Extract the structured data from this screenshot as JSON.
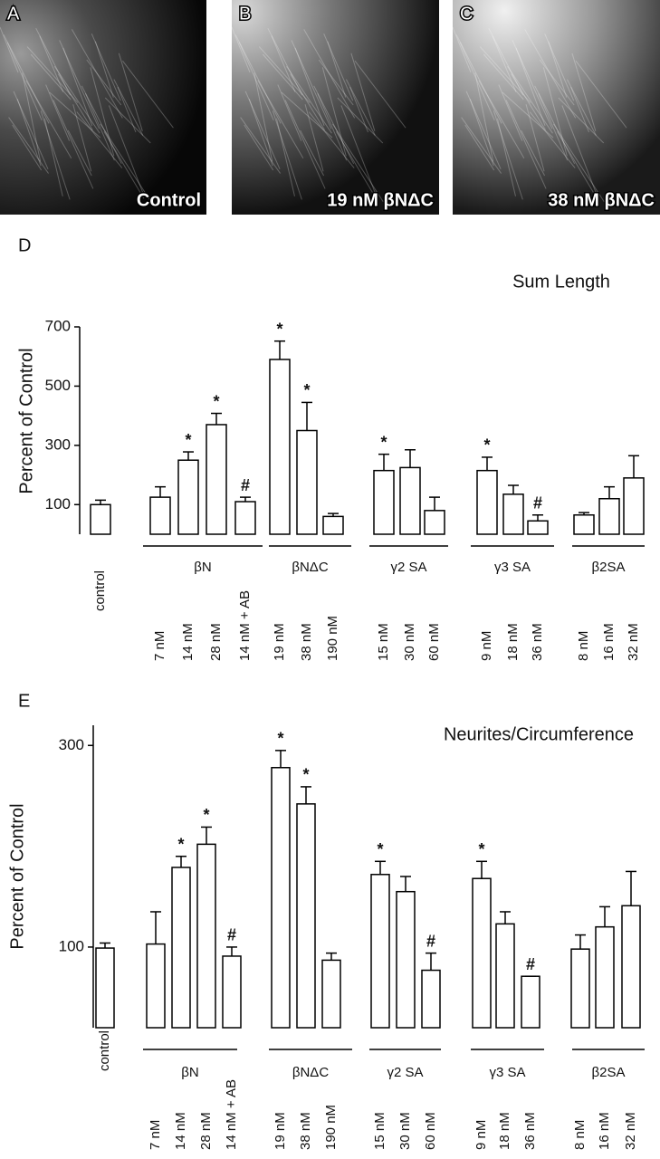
{
  "images": [
    {
      "letter": "A",
      "caption": "Control"
    },
    {
      "letter": "B",
      "caption": "19 nM βNΔC"
    },
    {
      "letter": "C",
      "caption": "38 nM βNΔC"
    }
  ],
  "chart_data": [
    {
      "type": "bar",
      "panel": "D",
      "title": "Sum Length",
      "ylabel": "Percent of Control",
      "ylim": [
        0,
        700
      ],
      "yticks": [
        100,
        300,
        500,
        700
      ],
      "color": "#ffffff",
      "groups": [
        {
          "name": null,
          "categories": [
            "control"
          ],
          "values": [
            100
          ],
          "errors": [
            15
          ],
          "annotations": [
            null
          ]
        },
        {
          "name": "βN",
          "categories": [
            "7 nM",
            "14 nM",
            "28 nM",
            "14 nM + AB"
          ],
          "values": [
            125,
            250,
            370,
            110
          ],
          "errors": [
            35,
            28,
            38,
            15
          ],
          "annotations": [
            null,
            "*",
            "*",
            "#"
          ]
        },
        {
          "name": "βNΔC",
          "categories": [
            "19 nM",
            "38 nM",
            "190 nM"
          ],
          "values": [
            590,
            350,
            60
          ],
          "errors": [
            62,
            95,
            10
          ],
          "annotations": [
            "*",
            "*",
            null
          ]
        },
        {
          "name": "γ2 SA",
          "categories": [
            "15 nM",
            "30 nM",
            "60 nM"
          ],
          "values": [
            215,
            225,
            80
          ],
          "errors": [
            55,
            60,
            45
          ],
          "annotations": [
            "*",
            null,
            null
          ]
        },
        {
          "name": "γ3 SA",
          "categories": [
            "9 nM",
            "18 nM",
            "36 nM"
          ],
          "values": [
            215,
            135,
            45
          ],
          "errors": [
            45,
            30,
            20
          ],
          "annotations": [
            "*",
            null,
            "#"
          ]
        },
        {
          "name": "β2SA",
          "categories": [
            "8 nM",
            "16 nM",
            "32 nM"
          ],
          "values": [
            65,
            120,
            190
          ],
          "errors": [
            8,
            40,
            75
          ],
          "annotations": [
            null,
            null,
            null
          ]
        }
      ]
    },
    {
      "type": "bar",
      "panel": "E",
      "title": "Neurites/Circumference",
      "ylabel": "Percent of Control",
      "ylim": [
        20,
        320
      ],
      "yticks": [
        100,
        300
      ],
      "color": "#ffffff",
      "groups": [
        {
          "name": null,
          "categories": [
            "control"
          ],
          "values": [
            99
          ],
          "errors": [
            5
          ],
          "annotations": [
            null
          ]
        },
        {
          "name": "βN",
          "categories": [
            "7 nM",
            "14 nM",
            "28 nM",
            "14 nM + AB"
          ],
          "values": [
            103,
            179,
            202,
            91
          ],
          "errors": [
            32,
            11,
            17,
            9
          ],
          "annotations": [
            null,
            "*",
            "*",
            "#"
          ]
        },
        {
          "name": "βNΔC",
          "categories": [
            "19 nM",
            "38 nM",
            "190 nM"
          ],
          "values": [
            278,
            242,
            87
          ],
          "errors": [
            17,
            17,
            7
          ],
          "annotations": [
            "*",
            "*",
            null
          ]
        },
        {
          "name": "γ2 SA",
          "categories": [
            "15 nM",
            "30 nM",
            "60 nM"
          ],
          "values": [
            172,
            155,
            77
          ],
          "errors": [
            13,
            15,
            17
          ],
          "annotations": [
            "*",
            null,
            "#"
          ]
        },
        {
          "name": "γ3 SA",
          "categories": [
            "9 nM",
            "18 nM",
            "36 nM"
          ],
          "values": [
            168,
            123,
            71
          ],
          "errors": [
            17,
            12,
            0
          ],
          "annotations": [
            "*",
            null,
            "#"
          ]
        },
        {
          "name": "β2SA",
          "categories": [
            "8 nM",
            "16 nM",
            "32 nM"
          ],
          "values": [
            98,
            120,
            141
          ],
          "errors": [
            14,
            20,
            34
          ],
          "annotations": [
            null,
            null,
            null
          ]
        }
      ]
    }
  ]
}
